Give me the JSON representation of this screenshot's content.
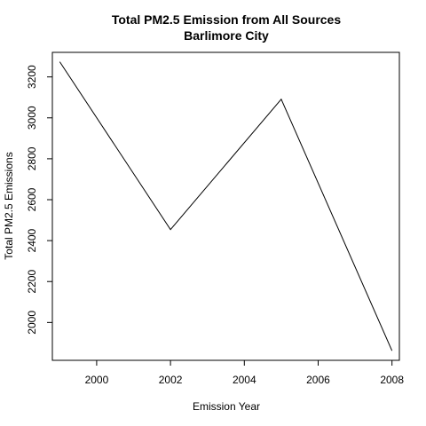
{
  "chart_data": {
    "type": "line",
    "title": "Total PM2.5 Emission from All Sources",
    "subtitle": "Barlimore City",
    "xlabel": "Emission Year",
    "ylabel": "Total PM2.5 Emissions",
    "x": [
      1999,
      2002,
      2005,
      2008
    ],
    "series": [
      {
        "values": [
          3274,
          2454,
          3091,
          1862
        ]
      }
    ],
    "xlim": [
      1998.8,
      2008.2
    ],
    "ylim": [
      1815,
      3320
    ],
    "xticks": [
      2000,
      2002,
      2004,
      2006,
      2008
    ],
    "yticks": [
      2000,
      2200,
      2400,
      2600,
      2800,
      3000,
      3200
    ],
    "grid": false,
    "line_color": "#000000"
  }
}
